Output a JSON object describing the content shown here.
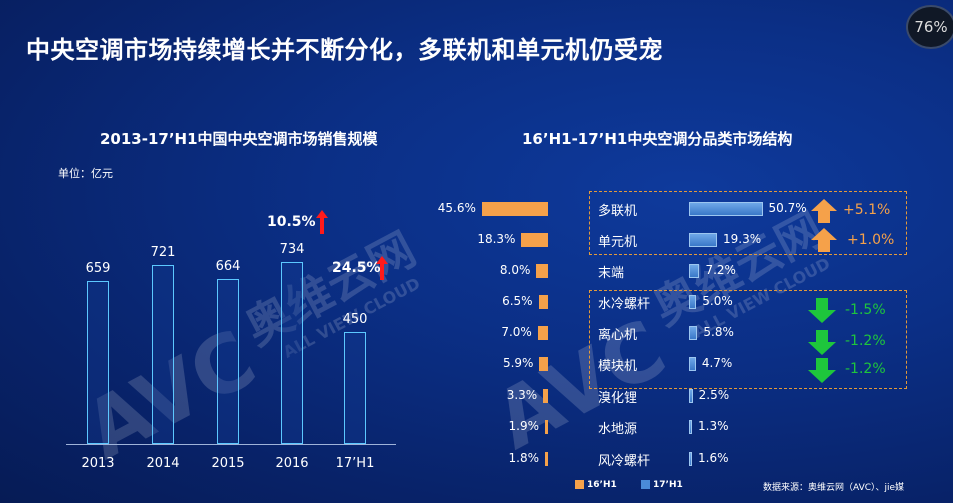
{
  "header": {
    "title": "中央空调市场持续增长并不断分化，多联机和单元机仍受宠",
    "progress_badge": "76%"
  },
  "left_chart": {
    "subtitle": "2013-17’H1中国中央空调市场销售规模",
    "unit": "单位：亿元",
    "growth_1": "10.5%",
    "growth_2": "24.5%"
  },
  "right_chart": {
    "subtitle": "16’H1-17’H1中央空调分品类市场结构",
    "legend_16": "16’H1",
    "legend_17": "17’H1",
    "changes": [
      "+5.1%",
      "+1.0%",
      "-1.5%",
      "-1.2%",
      "-1.2%"
    ]
  },
  "watermark": {
    "brand": "奥维云网",
    "logo": "AVC",
    "tagline": "ALL VIEW CLOUD"
  },
  "source": "数据来源：奥维云网（AVC）、jie媒",
  "colors": {
    "orange": "#f5a14a",
    "blue_bar": "#4a8ad8",
    "red_arrow": "#ff1a1a",
    "green_arrow": "#1ec63c",
    "bar_outline": "#5cc8ff"
  },
  "chart_data": [
    {
      "type": "bar",
      "title": "2013-17’H1中国中央空调市场销售规模",
      "ylabel": "单位：亿元",
      "categories": [
        "2013",
        "2014",
        "2015",
        "2016",
        "17’H1"
      ],
      "values": [
        659,
        721,
        664,
        734,
        450
      ],
      "ylim": [
        0,
        900
      ],
      "annotations": [
        "10.5%",
        "24.5%"
      ]
    },
    {
      "type": "bar",
      "title": "16’H1-17’H1中央空调分品类市场结构",
      "categories": [
        "多联机",
        "单元机",
        "末端",
        "水冷螺杆",
        "离心机",
        "模块机",
        "溴化锂",
        "水地源",
        "风冷螺杆"
      ],
      "series": [
        {
          "name": "16’H1",
          "values": [
            45.6,
            18.3,
            8.0,
            6.5,
            7.0,
            5.9,
            3.3,
            1.9,
            1.8
          ]
        },
        {
          "name": "17’H1",
          "values": [
            50.7,
            19.3,
            7.2,
            5.0,
            5.8,
            4.7,
            2.5,
            1.3,
            1.6
          ]
        }
      ]
    }
  ]
}
